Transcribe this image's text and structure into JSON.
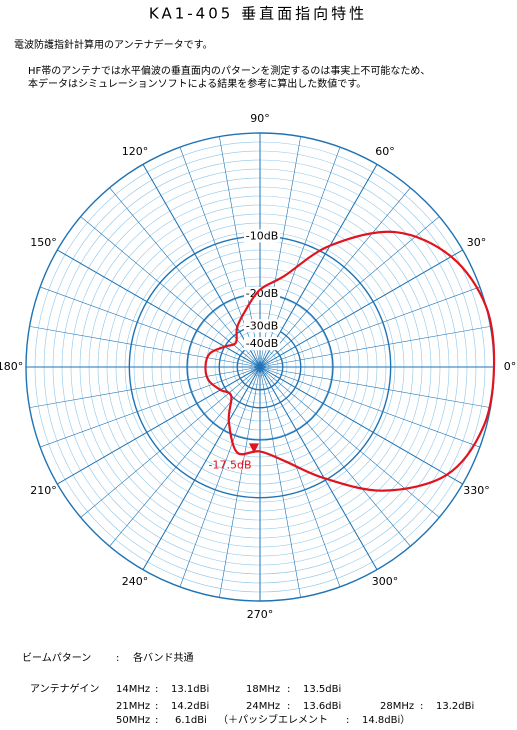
{
  "header": {
    "title": "KA1-405 垂直面指向特性"
  },
  "intro": [
    "電波防護指針計算用のアンテナデータです。",
    "HF帯のアンテナでは水平偏波の垂直面内のパターンを測定するのは事実上不可能なため、",
    "本データはシミュレーションソフトによる結果を参考に算出した数値です。"
  ],
  "chart_data": {
    "type": "polar",
    "radial_scale": "arrl",
    "theta": [
      0,
      15,
      30,
      45,
      60,
      75,
      90,
      105,
      120,
      135,
      150,
      165,
      180,
      195,
      210,
      225,
      240,
      255,
      270,
      285,
      300,
      315,
      330,
      345
    ],
    "series": [
      {
        "color": "#e0141e",
        "values": [
          0,
          0,
          -1,
          -3.5,
          -8.8,
          -15.6,
          -19,
          -24,
          -28,
          -33,
          -30,
          -25.8,
          -25,
          -25.5,
          -28,
          -30,
          -22.7,
          -16.7,
          -17.5,
          -15,
          -10.3,
          -5,
          -1.4,
          -0.2
        ]
      }
    ],
    "thetaticks": [
      {
        "value": 0,
        "label": "0°"
      },
      {
        "value": 30,
        "label": "30°"
      },
      {
        "value": 60,
        "label": "60°"
      },
      {
        "value": 90,
        "label": "90°"
      },
      {
        "value": 120,
        "label": "120°"
      },
      {
        "value": 150,
        "label": "150°"
      },
      {
        "value": 180,
        "label": "180°"
      },
      {
        "value": 210,
        "label": "210°"
      },
      {
        "value": 240,
        "label": "240°"
      },
      {
        "value": 270,
        "label": "270°"
      },
      {
        "value": 300,
        "label": "300°"
      },
      {
        "value": 330,
        "label": "330°"
      }
    ],
    "rticks": [
      {
        "value": -10,
        "label": "-10dB"
      },
      {
        "value": -20,
        "label": "-20dB"
      },
      {
        "value": -30,
        "label": "-30dB"
      },
      {
        "value": -40,
        "label": "-40dB"
      }
    ],
    "annotation": {
      "theta": 270,
      "value": -17.5,
      "label": "-17.5dB",
      "color": "#e0141e"
    },
    "grid_color": "#1f73b4",
    "minor_grid_color": "#8ec6ea"
  },
  "specs": {
    "separator": ":",
    "beam": {
      "label": "ビームパターン",
      "value": "各バンド共通"
    },
    "gain": {
      "label": "アンテナゲイン",
      "items": [
        {
          "band": "14MHz",
          "value": "13.1dBi"
        },
        {
          "band": "18MHz",
          "value": "13.5dBi"
        },
        {
          "band": "21MHz",
          "value": "14.2dBi"
        },
        {
          "band": "24MHz",
          "value": "13.6dBi"
        },
        {
          "band": "28MHz",
          "value": "13.2dBi"
        },
        {
          "band": "50MHz",
          "value": "6.1dBi"
        }
      ],
      "note": "（＋パッシブエレメント",
      "note_value": "14.8dBi）"
    }
  }
}
